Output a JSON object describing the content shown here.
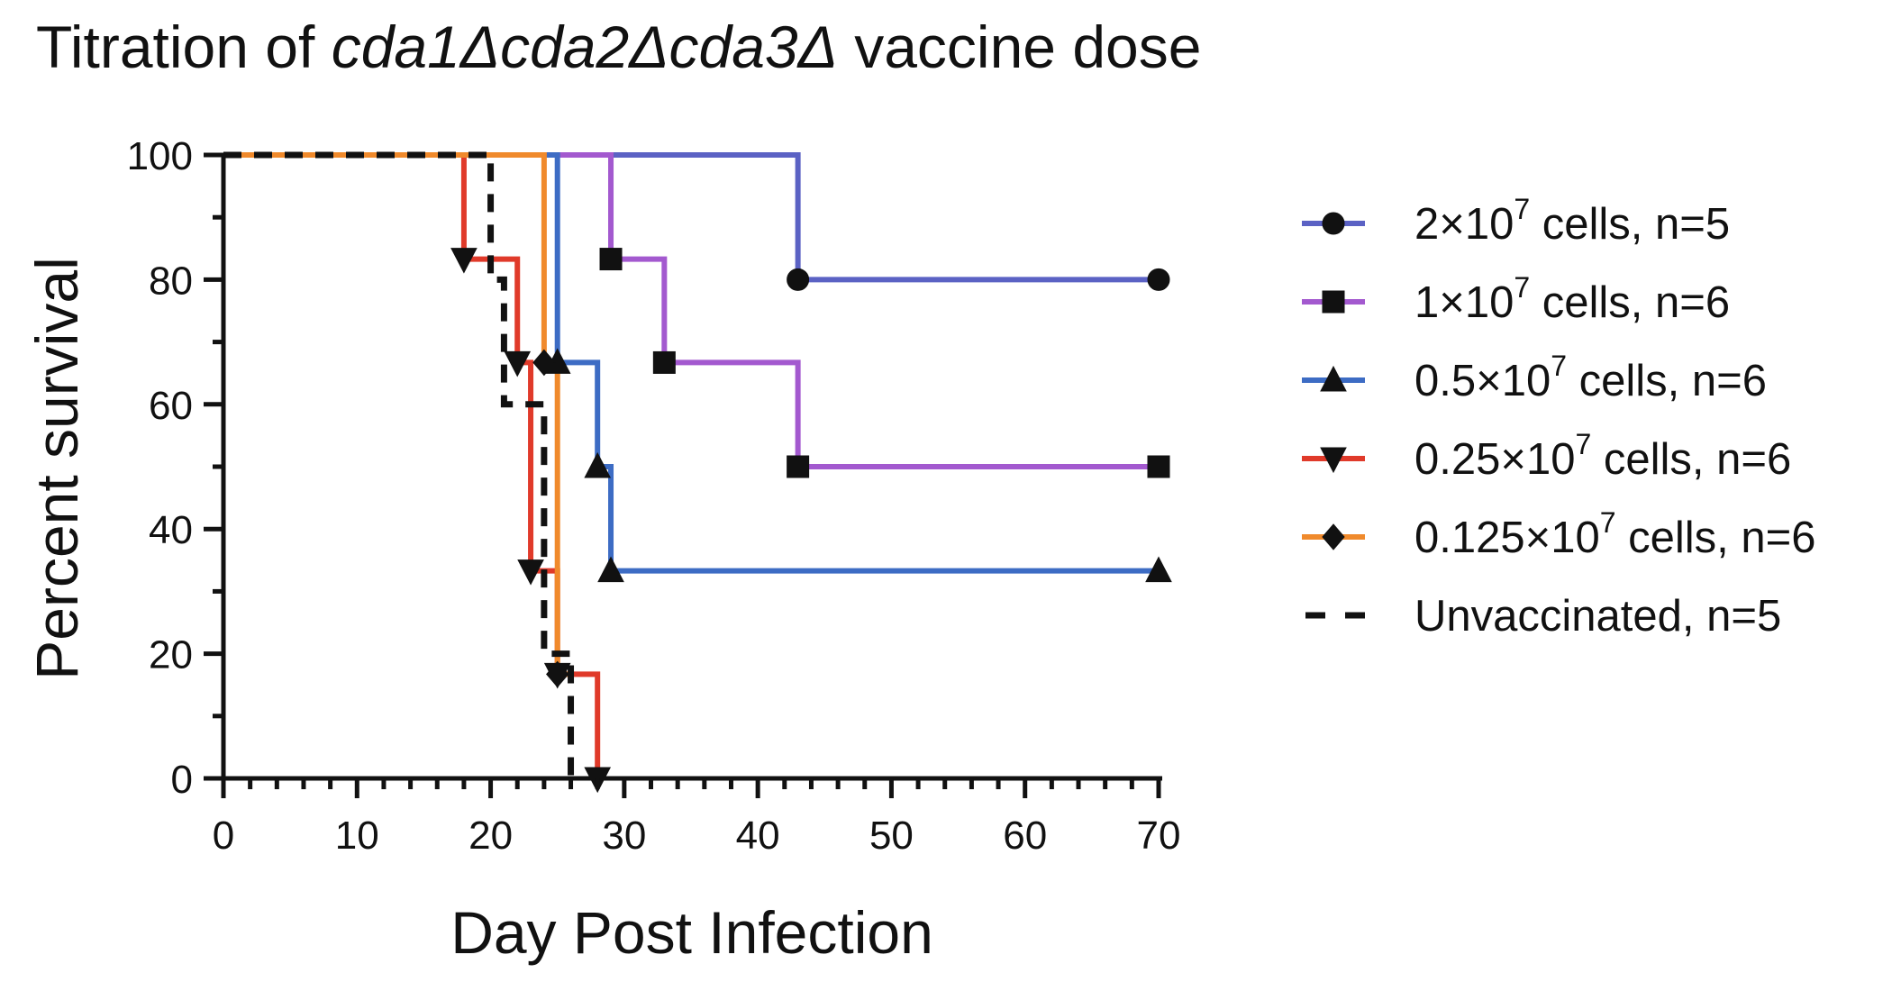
{
  "chart_data": {
    "type": "line",
    "subtype": "kaplan-meier-survival",
    "title": {
      "prefix": "Titration of ",
      "italic": "cda1Δcda2Δcda3Δ",
      "suffix": " vaccine dose"
    },
    "xlabel": "Day Post Infection",
    "ylabel": "Percent survival",
    "xlim": [
      0,
      70
    ],
    "ylim": [
      0,
      100
    ],
    "x_ticks": [
      "0",
      "10",
      "20",
      "30",
      "40",
      "50",
      "60",
      "70"
    ],
    "y_ticks": [
      "0",
      "20",
      "40",
      "60",
      "80",
      "100"
    ],
    "legend_position": "right",
    "series": [
      {
        "name": "2×10⁷ cells, n=5",
        "label_parts": [
          "2×10",
          "7",
          " cells, n=5"
        ],
        "color": "#5b62c4",
        "marker": "circle",
        "line": "solid",
        "steps": [
          [
            0,
            100
          ],
          [
            43,
            80
          ],
          [
            70,
            80
          ]
        ],
        "markers": [
          [
            43,
            80
          ],
          [
            70,
            80
          ]
        ]
      },
      {
        "name": "1×10⁷ cells, n=6",
        "label_parts": [
          "1×10",
          "7",
          " cells, n=6"
        ],
        "color": "#a359cf",
        "marker": "square",
        "line": "solid",
        "steps": [
          [
            0,
            100
          ],
          [
            29,
            83.3
          ],
          [
            33,
            66.7
          ],
          [
            43,
            50
          ],
          [
            70,
            50
          ]
        ],
        "markers": [
          [
            29,
            83.3
          ],
          [
            33,
            66.7
          ],
          [
            43,
            50
          ],
          [
            70,
            50
          ]
        ]
      },
      {
        "name": "0.5×10⁷ cells, n=6",
        "label_parts": [
          "0.5×10",
          "7",
          " cells, n=6"
        ],
        "color": "#3d6cc4",
        "marker": "triangle-up",
        "line": "solid",
        "steps": [
          [
            0,
            100
          ],
          [
            25,
            66.7
          ],
          [
            28,
            50
          ],
          [
            29,
            33.3
          ],
          [
            70,
            33.3
          ]
        ],
        "markers": [
          [
            25,
            66.7
          ],
          [
            28,
            50
          ],
          [
            29,
            33.3
          ],
          [
            70,
            33.3
          ]
        ]
      },
      {
        "name": "0.25×10⁷ cells, n=6",
        "label_parts": [
          "0.25×10",
          "7",
          " cells, n=6"
        ],
        "color": "#e03a2a",
        "marker": "triangle-down",
        "line": "solid",
        "steps": [
          [
            0,
            100
          ],
          [
            18,
            83.3
          ],
          [
            22,
            66.7
          ],
          [
            23,
            33.3
          ],
          [
            25,
            16.7
          ],
          [
            28,
            0
          ]
        ],
        "markers": [
          [
            18,
            83.3
          ],
          [
            22,
            66.7
          ],
          [
            23,
            33.3
          ],
          [
            25,
            16.7
          ],
          [
            28,
            0
          ]
        ]
      },
      {
        "name": "0.125×10⁷ cells, n=6",
        "label_parts": [
          "0.125×10",
          "7",
          " cells, n=6"
        ],
        "color": "#f08a2c",
        "marker": "diamond",
        "line": "solid",
        "steps": [
          [
            0,
            100
          ],
          [
            24,
            66.7
          ],
          [
            25,
            16.7
          ],
          [
            26,
            16.7
          ]
        ],
        "markers": [
          [
            24,
            66.7
          ],
          [
            25,
            16.7
          ]
        ]
      },
      {
        "name": "Unvaccinated, n=5",
        "label_parts": [
          "Unvaccinated, n=5",
          "",
          ""
        ],
        "color": "#111111",
        "marker": "none",
        "line": "dashed",
        "steps": [
          [
            0,
            100
          ],
          [
            20,
            100
          ],
          [
            20,
            80
          ],
          [
            21,
            80
          ],
          [
            21,
            60
          ],
          [
            24,
            60
          ],
          [
            24,
            40
          ],
          [
            24,
            20
          ],
          [
            26,
            20
          ],
          [
            26,
            0
          ]
        ],
        "markers": []
      }
    ]
  }
}
